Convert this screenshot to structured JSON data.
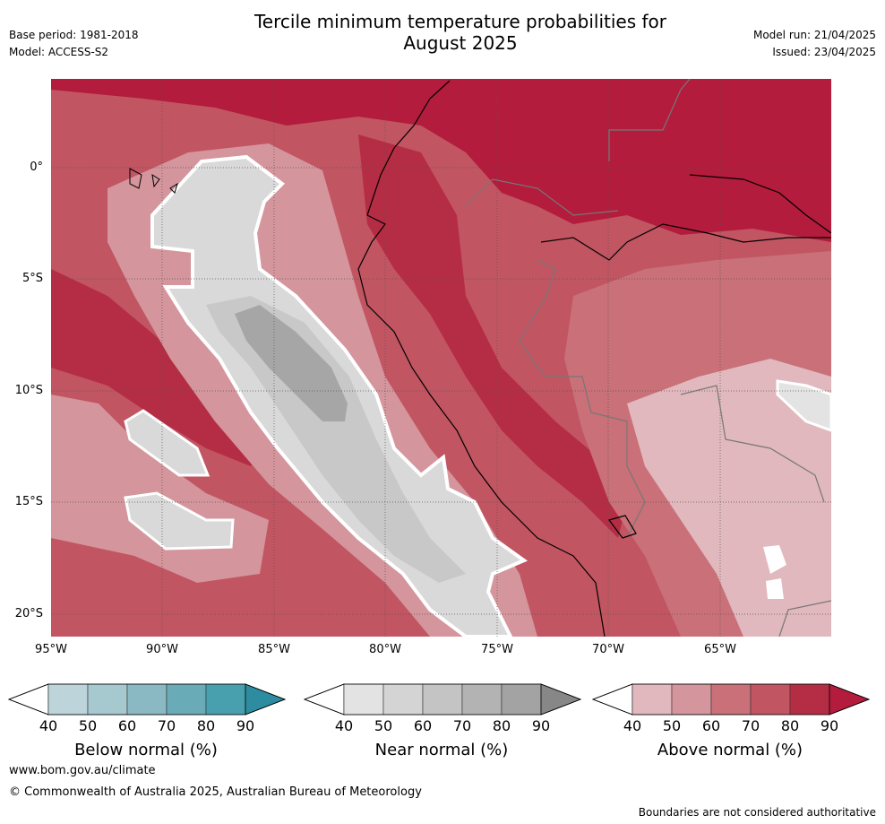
{
  "header": {
    "title_line1": "Tercile minimum temperature probabilities for",
    "title_line2": "August 2025",
    "base_period": "Base period: 1981-2018",
    "model": "Model: ACCESS-S2",
    "model_run": "Model run: 21/04/2025",
    "issued": "Issued: 23/04/2025"
  },
  "map": {
    "lon_ticks": [
      "95°W",
      "90°W",
      "85°W",
      "80°W",
      "75°W",
      "70°W",
      "65°W"
    ],
    "lat_ticks": [
      "0°",
      "5°S",
      "10°S",
      "15°S",
      "20°S"
    ],
    "extent": {
      "lon_min": -95,
      "lon_max": -60,
      "lat_min": -21,
      "lat_max": 4
    }
  },
  "colorbars": [
    {
      "label": "Below normal (%)",
      "ticks": [
        "40",
        "50",
        "60",
        "70",
        "80",
        "90"
      ],
      "colors": [
        "#bcd4da",
        "#a6c8cf",
        "#8bb9c3",
        "#6aabb8",
        "#489fae",
        "#2d8c9f"
      ]
    },
    {
      "label": "Near normal (%)",
      "ticks": [
        "40",
        "50",
        "60",
        "70",
        "80",
        "90"
      ],
      "colors": [
        "#e3e3e3",
        "#d4d4d4",
        "#c4c4c4",
        "#b3b3b3",
        "#a3a3a3",
        "#878787"
      ]
    },
    {
      "label": "Above normal (%)",
      "ticks": [
        "40",
        "50",
        "60",
        "70",
        "80",
        "90"
      ],
      "colors": [
        "#e0b8bd",
        "#d4959c",
        "#c97078",
        "#c15562",
        "#b52d44",
        "#b31c3c"
      ]
    }
  ],
  "footer": {
    "website": "www.bom.gov.au/climate",
    "copyright": "© Commonwealth of Australia 2025, Australian Bureau of Meteorology",
    "disclaimer": "Boundaries are not considered authoritative"
  }
}
